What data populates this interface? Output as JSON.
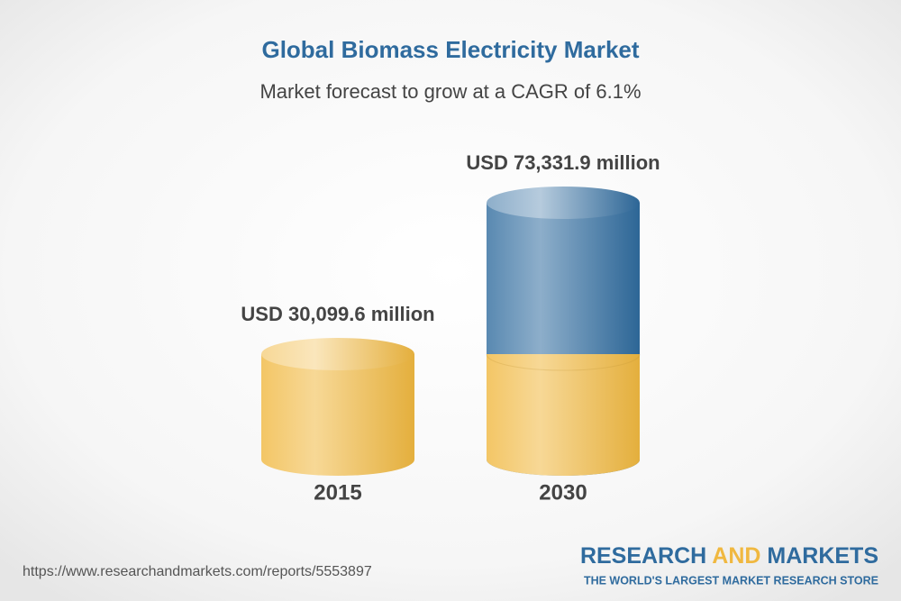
{
  "chart_data": {
    "type": "bar",
    "title": "Global Biomass Electricity Market",
    "subtitle": "Market forecast to grow at a CAGR of 6.1%",
    "categories": [
      "2015",
      "2030"
    ],
    "values": [
      30099.6,
      73331.9
    ],
    "value_labels": [
      "USD 30,099.6 million",
      "USD 73,331.9 million"
    ],
    "colors": [
      "#f0b840",
      "#2f6b9e"
    ]
  },
  "footer": {
    "source_url": "https://www.researchandmarkets.com/reports/5553897",
    "logo": {
      "words": [
        "RESEARCH",
        "AND",
        "MARKETS"
      ],
      "tagline": "THE WORLD'S LARGEST MARKET RESEARCH STORE"
    }
  }
}
